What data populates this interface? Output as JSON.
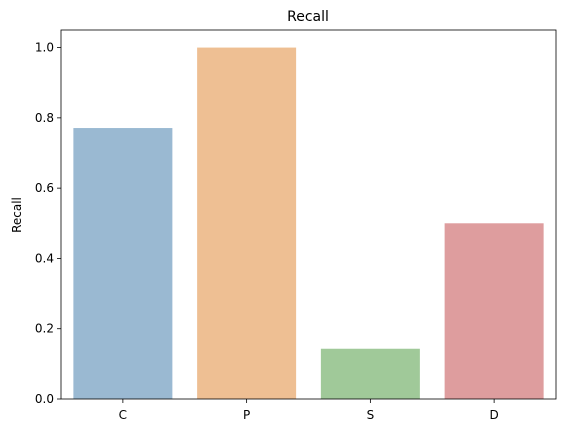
{
  "chart_data": {
    "type": "bar",
    "title": "Recall",
    "xlabel": "",
    "ylabel": "Recall",
    "categories": [
      "C",
      "P",
      "S",
      "D"
    ],
    "values": [
      0.771,
      1.0,
      0.143,
      0.5
    ],
    "ylim": [
      0,
      1.05
    ],
    "yticks": [
      0.0,
      0.2,
      0.4,
      0.6,
      0.8,
      1.0
    ],
    "ytick_labels": [
      "0.0",
      "0.2",
      "0.4",
      "0.6",
      "0.8",
      "1.0"
    ],
    "colors": [
      "#9ab9d2",
      "#eebf93",
      "#a0c999",
      "#de9d9e"
    ],
    "grid": false
  }
}
